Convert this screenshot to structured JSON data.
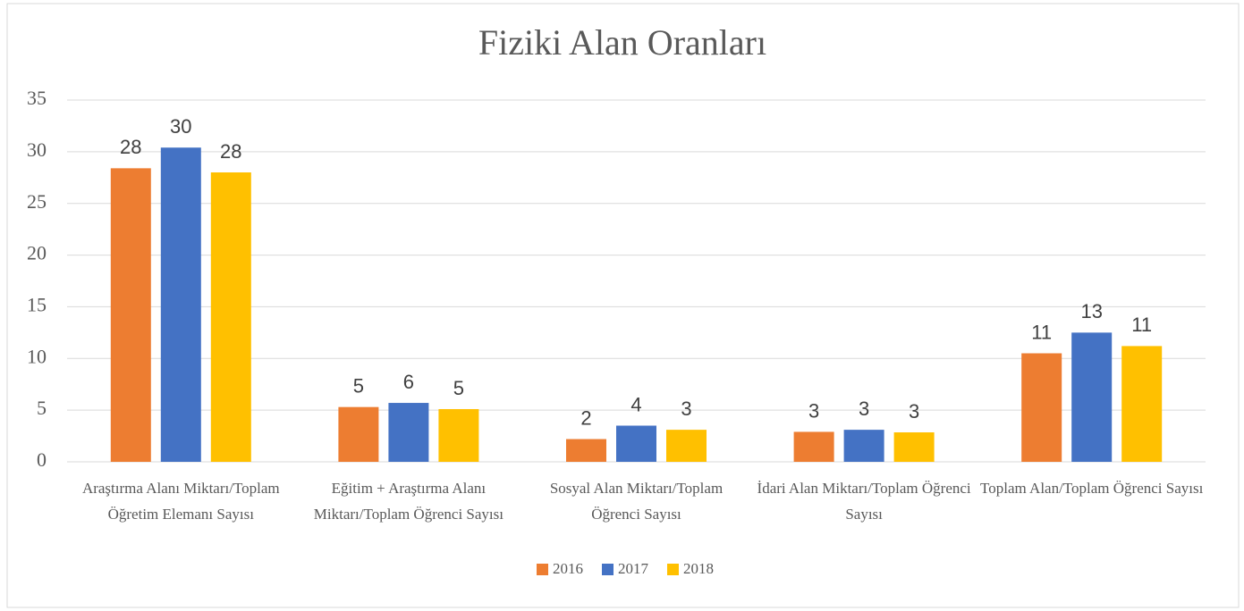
{
  "chart_data": {
    "type": "bar",
    "title": "Fiziki Alan Oranları",
    "categories": [
      "Araştırma Alanı Miktarı/Toplam Öğretim Elemanı Sayısı",
      "Eğitim + Araştırma Alanı Miktarı/Toplam Öğrenci Sayısı",
      "Sosyal Alan Miktarı/Toplam Öğrenci Sayısı",
      "İdari Alan Miktarı/Toplam Öğrenci Sayısı",
      "Toplam Alan/Toplam Öğrenci Sayısı"
    ],
    "series": [
      {
        "name": "2016",
        "color": "#ed7d31",
        "values": [
          28.4,
          5.3,
          2.2,
          2.9,
          10.5
        ],
        "value_labels": [
          "28",
          "5",
          "2",
          "3",
          "11"
        ]
      },
      {
        "name": "2017",
        "color": "#4472c4",
        "values": [
          30.4,
          5.7,
          3.5,
          3.1,
          12.5
        ],
        "value_labels": [
          "30",
          "6",
          "4",
          "3",
          "13"
        ]
      },
      {
        "name": "2018",
        "color": "#ffc000",
        "values": [
          28.0,
          5.1,
          3.1,
          2.85,
          11.2
        ],
        "value_labels": [
          "28",
          "5",
          "3",
          "3",
          "11"
        ]
      }
    ],
    "ylim": [
      0,
      35
    ],
    "yticks": [
      0,
      5,
      10,
      15,
      20,
      25,
      30,
      35
    ],
    "grid": true,
    "legend": "bottom"
  }
}
